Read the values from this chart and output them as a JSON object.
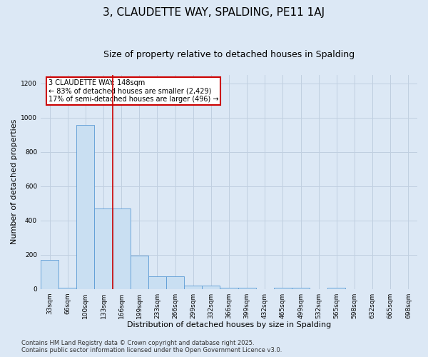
{
  "title": "3, CLAUDETTE WAY, SPALDING, PE11 1AJ",
  "subtitle": "Size of property relative to detached houses in Spalding",
  "xlabel": "Distribution of detached houses by size in Spalding",
  "ylabel": "Number of detached properties",
  "bar_values": [
    170,
    5,
    960,
    470,
    470,
    193,
    75,
    75,
    18,
    18,
    5,
    5,
    0,
    5,
    5,
    0,
    5,
    0,
    0,
    0,
    0
  ],
  "bar_labels": [
    "33sqm",
    "66sqm",
    "100sqm",
    "133sqm",
    "166sqm",
    "199sqm",
    "233sqm",
    "266sqm",
    "299sqm",
    "332sqm",
    "366sqm",
    "399sqm",
    "432sqm",
    "465sqm",
    "499sqm",
    "532sqm",
    "565sqm",
    "598sqm",
    "632sqm",
    "665sqm",
    "698sqm"
  ],
  "bar_color": "#c9dff2",
  "bar_edge_color": "#5b9bd5",
  "grid_color": "#c0cfe0",
  "background_color": "#dce8f5",
  "red_line_x": 3.5,
  "red_line_color": "#cc0000",
  "annotation_text": "3 CLAUDETTE WAY: 148sqm\n← 83% of detached houses are smaller (2,429)\n17% of semi-detached houses are larger (496) →",
  "annotation_box_color": "white",
  "annotation_box_edge_color": "#cc0000",
  "ylim": [
    0,
    1250
  ],
  "yticks": [
    0,
    200,
    400,
    600,
    800,
    1000,
    1200
  ],
  "footer": "Contains HM Land Registry data © Crown copyright and database right 2025.\nContains public sector information licensed under the Open Government Licence v3.0.",
  "title_fontsize": 11,
  "subtitle_fontsize": 9,
  "label_fontsize": 8,
  "tick_fontsize": 6.5,
  "annot_fontsize": 7,
  "footer_fontsize": 6
}
